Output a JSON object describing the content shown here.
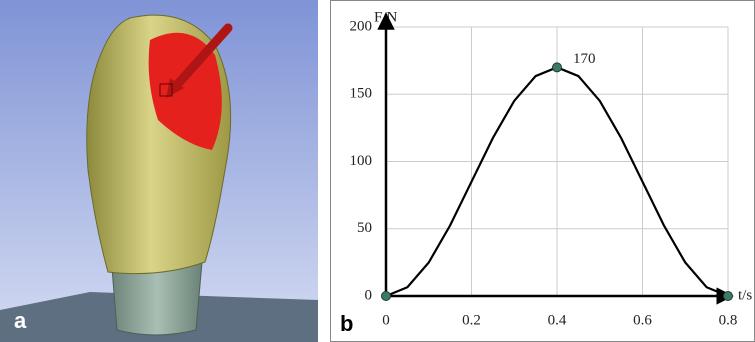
{
  "panel_a": {
    "label": "a"
  },
  "chart_data": {
    "type": "line",
    "panel_label": "b",
    "xlabel": "t/s",
    "ylabel": "F/N",
    "annotation": {
      "text": "170",
      "x": 0.4,
      "y": 170
    },
    "xlim": [
      0,
      0.8
    ],
    "xticks": [
      0,
      0.2,
      0.4,
      0.6,
      0.8
    ],
    "ylim": [
      0,
      200
    ],
    "yticks": [
      0,
      50,
      100,
      150,
      200
    ],
    "grid": true,
    "series": [
      {
        "color": "#000000",
        "marker": false,
        "x": [
          0,
          0.05,
          0.1,
          0.15,
          0.2,
          0.25,
          0.3,
          0.35,
          0.4,
          0.45,
          0.5,
          0.55,
          0.6,
          0.65,
          0.7,
          0.75,
          0.8
        ],
        "values": [
          0,
          6.5,
          24.9,
          52.5,
          85,
          117.5,
          145.1,
          163.5,
          170,
          163.5,
          145.1,
          117.5,
          85,
          52.5,
          24.9,
          6.5,
          0
        ]
      },
      {
        "color": "#3d7a66",
        "marker": true,
        "line": false,
        "x": [
          0,
          0.4,
          0.8
        ],
        "values": [
          0,
          170,
          0
        ]
      }
    ]
  }
}
